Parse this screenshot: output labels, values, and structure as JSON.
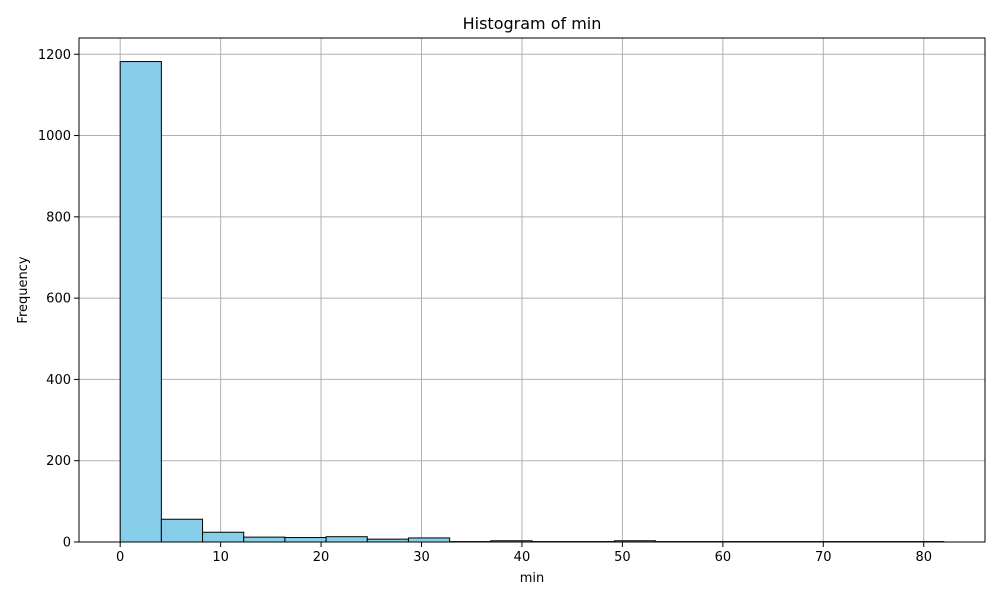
{
  "chart_data": {
    "type": "bar",
    "title": "Histogram of min",
    "xlabel": "min",
    "ylabel": "Frequency",
    "xlim": [
      -4.1,
      86.1
    ],
    "ylim": [
      0,
      1240
    ],
    "x_ticks": [
      0,
      10,
      20,
      30,
      40,
      50,
      60,
      70,
      80
    ],
    "y_ticks": [
      0,
      200,
      400,
      600,
      800,
      1000,
      1200
    ],
    "grid": true,
    "bin_edges": [
      0,
      4.1,
      8.2,
      12.3,
      16.4,
      20.5,
      24.6,
      28.7,
      32.8,
      36.9,
      41.0,
      45.1,
      49.2,
      53.3,
      57.4,
      61.5,
      65.6,
      69.7,
      73.8,
      77.9,
      82.0
    ],
    "values": [
      1182,
      56,
      24,
      12,
      11,
      13,
      7,
      10,
      1,
      3,
      1,
      1,
      3,
      1,
      1,
      1,
      1,
      1,
      1,
      1
    ],
    "colors": {
      "bar_fill": "#87ceeb",
      "bar_edge": "#000000",
      "grid": "#b0b0b0",
      "axis": "#000000"
    }
  }
}
